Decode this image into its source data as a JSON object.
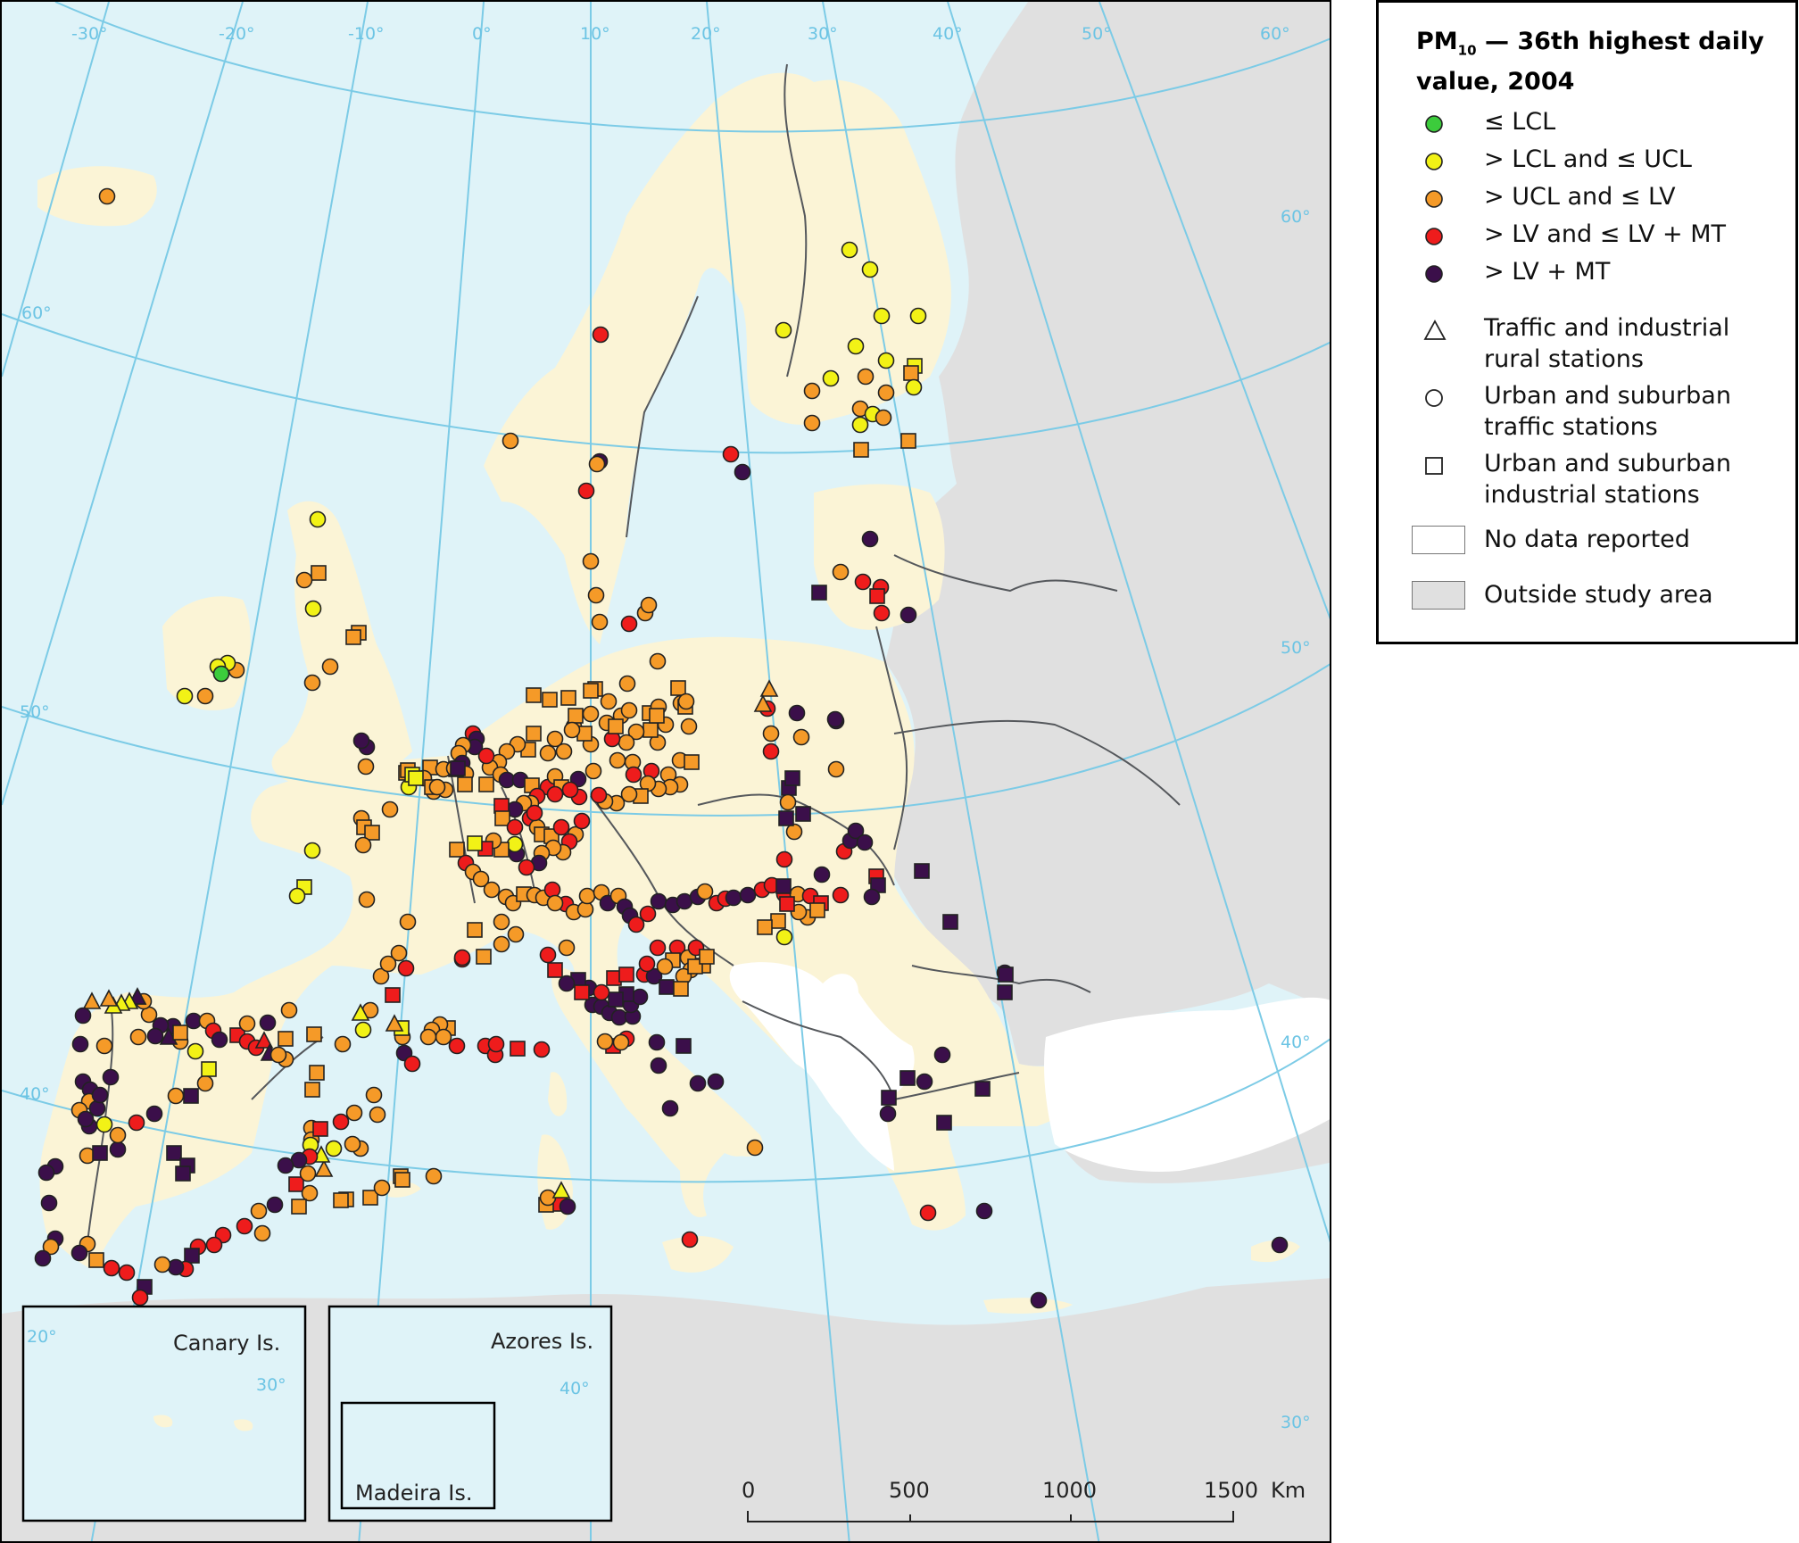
{
  "legend": {
    "title_prefix": "PM",
    "title_sub": "10",
    "title_rest": " — 36th highest daily value, 2004",
    "classes": [
      {
        "label": "≤ LCL",
        "color": "#3ccc3c"
      },
      {
        "label": "> LCL and ≤ UCL",
        "color": "#f2f216"
      },
      {
        "label": "> UCL and ≤ LV",
        "color": "#f59a28"
      },
      {
        "label": "> LV and ≤ LV + MT",
        "color": "#ee1c1c"
      },
      {
        "label": "> LV + MT",
        "color": "#3b0f4a"
      }
    ],
    "station_types": [
      {
        "icon": "triangle-icon",
        "label": "Traffic and industrial rural stations"
      },
      {
        "icon": "circle-icon",
        "label": "Urban and suburban traffic stations"
      },
      {
        "icon": "square-icon",
        "label": "Urban and suburban industrial stations"
      }
    ],
    "areas": [
      {
        "label": "No data reported",
        "color": "#ffffff"
      },
      {
        "label": "Outside study area",
        "color": "#e0e0e0"
      }
    ]
  },
  "graticule": {
    "longitude_labels": [
      "-30°",
      "-20°",
      "-10°",
      "0°",
      "10°",
      "20°",
      "30°",
      "40°",
      "50°",
      "60°"
    ],
    "latitude_labels": [
      "60°",
      "50°",
      "40°",
      "30°"
    ]
  },
  "insets": [
    {
      "title": "Canary Is.",
      "degree_labels": [
        "20°",
        "30°"
      ]
    },
    {
      "title": "Azores Is.",
      "degree_labels": [
        "40°"
      ]
    },
    {
      "title": "Madeira Is."
    }
  ],
  "scale_bar": {
    "labels": [
      "0",
      "500",
      "1000",
      "1500"
    ],
    "unit": "Km"
  }
}
